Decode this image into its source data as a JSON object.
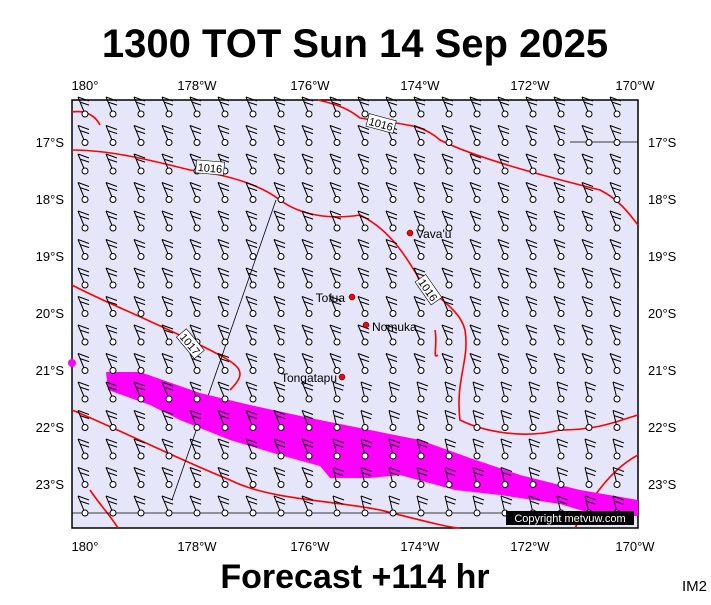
{
  "title": "1300 TOT Sun 14 Sep 2025",
  "footer": "Forecast +114 hr",
  "corner": "IM2",
  "copyright": "Copyright metvuw.com",
  "lon_labels": [
    "180°",
    "178°W",
    "176°W",
    "174°W",
    "172°W",
    "170°W"
  ],
  "lat_labels": [
    "17°S",
    "18°S",
    "19°S",
    "20°S",
    "21°S",
    "22°S",
    "23°S"
  ],
  "places": [
    "Vava'u",
    "Tofua",
    "Nomuka",
    "Tongatapu"
  ],
  "isobar_labels": [
    "1016",
    "1016",
    "1016",
    "1017"
  ]
}
